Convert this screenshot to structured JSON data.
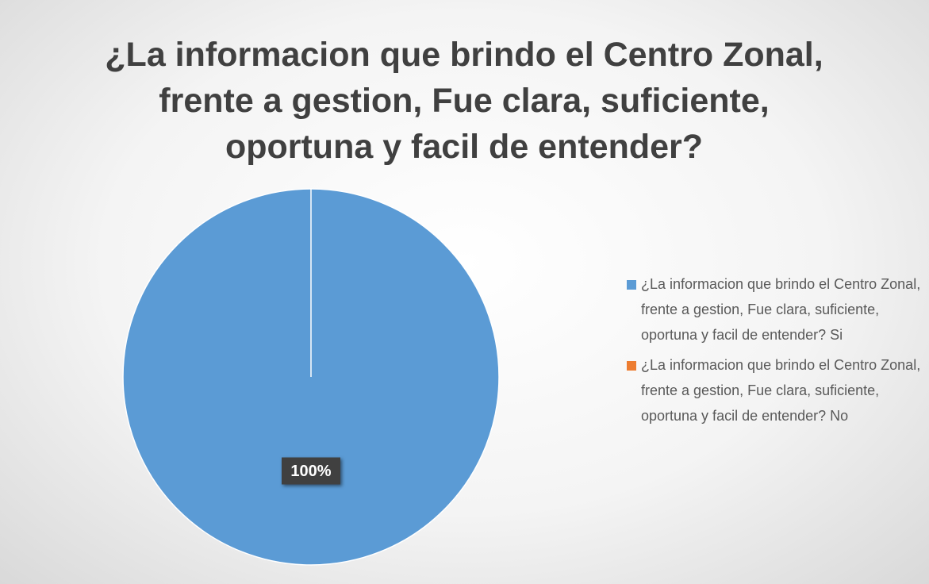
{
  "chart_data": {
    "type": "pie",
    "title": "¿La informacion que brindo el Centro Zonal, frente a gestion, Fue clara, suficiente, oportuna y facil de entender?",
    "categories": [
      "¿La informacion que brindo el Centro Zonal, frente a gestion, Fue clara, suficiente, oportuna y facil de entender? Si",
      "¿La informacion que brindo el Centro Zonal, frente a gestion, Fue clara, suficiente, oportuna y facil de entender? No"
    ],
    "values": [
      100,
      0
    ],
    "value_labels": [
      "100%",
      null
    ],
    "colors": [
      "#5b9bd5",
      "#ed7d31"
    ],
    "legend": "right"
  }
}
